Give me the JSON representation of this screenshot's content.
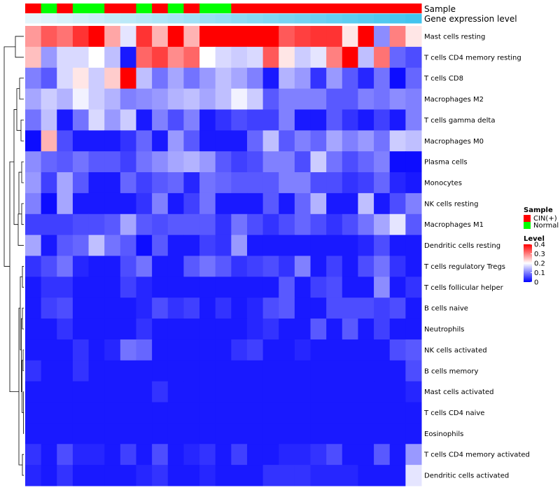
{
  "chart_data": {
    "type": "heatmap",
    "title": "",
    "annotations": {
      "sample": {
        "label": "Sample",
        "values": [
          "CIN(+)",
          "Normal",
          "CIN(+)",
          "Normal",
          "Normal",
          "CIN(+)",
          "CIN(+)",
          "Normal",
          "CIN(+)",
          "Normal",
          "CIN(+)",
          "Normal",
          "Normal",
          "CIN(+)",
          "CIN(+)",
          "CIN(+)",
          "CIN(+)",
          "CIN(+)",
          "CIN(+)",
          "CIN(+)",
          "CIN(+)",
          "CIN(+)",
          "CIN(+)",
          "CIN(+)",
          "CIN(+)"
        ]
      },
      "gene_expression": {
        "label": "Gene expression level",
        "values": [
          0.02,
          0.06,
          0.1,
          0.14,
          0.18,
          0.22,
          0.26,
          0.3,
          0.34,
          0.38,
          0.42,
          0.46,
          0.5,
          0.54,
          0.58,
          0.62,
          0.66,
          0.7,
          0.74,
          0.78,
          0.82,
          0.86,
          0.9,
          0.94,
          0.98
        ]
      }
    },
    "rows": [
      "Mast cells resting",
      "T cells CD4 memory resting",
      "T cells CD8",
      "Macrophages M2",
      "T cells gamma delta",
      "Macrophages M0",
      "Plasma cells",
      "Monocytes",
      "NK cells resting",
      "Macrophages M1",
      "Dendritic cells resting",
      "T cells regulatory  Tregs",
      "T cells follicular helper",
      "B cells naive",
      "Neutrophils",
      "NK cells activated",
      "B cells memory",
      "Mast cells activated",
      "T cells CD4 naive",
      "Eosinophils",
      "T cells CD4 memory activated",
      "Dendritic cells activated"
    ],
    "values": [
      [
        0.28,
        0.33,
        0.31,
        0.36,
        0.4,
        0.27,
        0.18,
        0.36,
        0.26,
        0.4,
        0.26,
        0.4,
        0.4,
        0.4,
        0.4,
        0.4,
        0.33,
        0.35,
        0.36,
        0.36,
        0.22,
        0.4,
        0.11,
        0.3,
        0.22
      ],
      [
        0.25,
        0.12,
        0.17,
        0.17,
        0.2,
        0.15,
        0.02,
        0.32,
        0.35,
        0.29,
        0.32,
        0.2,
        0.17,
        0.16,
        0.17,
        0.33,
        0.22,
        0.16,
        0.18,
        0.3,
        0.4,
        0.15,
        0.31,
        0.08,
        0.06
      ],
      [
        0.1,
        0.07,
        0.17,
        0.22,
        0.16,
        0.24,
        0.4,
        0.15,
        0.09,
        0.13,
        0.09,
        0.12,
        0.15,
        0.13,
        0.1,
        0.02,
        0.14,
        0.12,
        0.04,
        0.12,
        0.07,
        0.03,
        0.09,
        0.01,
        0.08
      ],
      [
        0.13,
        0.16,
        0.14,
        0.19,
        0.16,
        0.14,
        0.1,
        0.11,
        0.12,
        0.14,
        0.15,
        0.13,
        0.15,
        0.19,
        0.16,
        0.07,
        0.1,
        0.1,
        0.1,
        0.07,
        0.07,
        0.1,
        0.09,
        0.11,
        0.1
      ],
      [
        0.09,
        0.15,
        0.02,
        0.09,
        0.17,
        0.12,
        0.16,
        0.02,
        0.1,
        0.06,
        0.1,
        0.02,
        0.04,
        0.06,
        0.05,
        0.05,
        0.1,
        0.02,
        0.02,
        0.07,
        0.04,
        0.02,
        0.05,
        0.02,
        0.1
      ],
      [
        0.01,
        0.26,
        0.06,
        0.02,
        0.02,
        0.02,
        0.04,
        0.08,
        0.02,
        0.12,
        0.07,
        0.02,
        0.02,
        0.02,
        0.08,
        0.15,
        0.07,
        0.1,
        0.08,
        0.13,
        0.1,
        0.12,
        0.09,
        0.16,
        0.15
      ],
      [
        0.11,
        0.08,
        0.07,
        0.09,
        0.07,
        0.07,
        0.05,
        0.09,
        0.11,
        0.13,
        0.14,
        0.12,
        0.07,
        0.05,
        0.06,
        0.1,
        0.1,
        0.06,
        0.16,
        0.09,
        0.06,
        0.08,
        0.1,
        0.01,
        0.01
      ],
      [
        0.12,
        0.05,
        0.13,
        0.07,
        0.02,
        0.02,
        0.08,
        0.05,
        0.07,
        0.08,
        0.03,
        0.09,
        0.08,
        0.07,
        0.07,
        0.07,
        0.1,
        0.1,
        0.06,
        0.06,
        0.04,
        0.05,
        0.08,
        0.03,
        0.02
      ],
      [
        0.1,
        0.01,
        0.13,
        0.02,
        0.02,
        0.02,
        0.02,
        0.04,
        0.1,
        0.02,
        0.05,
        0.09,
        0.02,
        0.02,
        0.02,
        0.07,
        0.02,
        0.08,
        0.14,
        0.02,
        0.02,
        0.15,
        0.02,
        0.06,
        0.1
      ],
      [
        0.05,
        0.05,
        0.05,
        0.06,
        0.06,
        0.07,
        0.13,
        0.07,
        0.06,
        0.07,
        0.07,
        0.07,
        0.04,
        0.09,
        0.06,
        0.04,
        0.06,
        0.08,
        0.06,
        0.04,
        0.06,
        0.09,
        0.13,
        0.18,
        0.07
      ],
      [
        0.13,
        0.02,
        0.07,
        0.08,
        0.15,
        0.09,
        0.07,
        0.01,
        0.07,
        0.02,
        0.02,
        0.05,
        0.04,
        0.12,
        0.02,
        0.02,
        0.02,
        0.02,
        0.02,
        0.02,
        0.02,
        0.03,
        0.06,
        0.02,
        0.02
      ],
      [
        0.04,
        0.06,
        0.09,
        0.03,
        0.02,
        0.02,
        0.06,
        0.09,
        0.02,
        0.02,
        0.07,
        0.09,
        0.07,
        0.04,
        0.05,
        0.06,
        0.04,
        0.1,
        0.02,
        0.05,
        0.02,
        0.06,
        0.09,
        0.04,
        0.02
      ],
      [
        0.02,
        0.04,
        0.04,
        0.02,
        0.02,
        0.02,
        0.05,
        0.03,
        0.02,
        0.02,
        0.02,
        0.02,
        0.02,
        0.02,
        0.02,
        0.02,
        0.07,
        0.02,
        0.05,
        0.06,
        0.02,
        0.02,
        0.11,
        0.02,
        0.04
      ],
      [
        0.02,
        0.05,
        0.06,
        0.02,
        0.02,
        0.02,
        0.02,
        0.03,
        0.06,
        0.04,
        0.05,
        0.02,
        0.04,
        0.02,
        0.03,
        0.06,
        0.07,
        0.02,
        0.02,
        0.06,
        0.06,
        0.06,
        0.05,
        0.06,
        0.02
      ],
      [
        0.02,
        0.02,
        0.04,
        0.02,
        0.02,
        0.02,
        0.02,
        0.04,
        0.02,
        0.02,
        0.02,
        0.02,
        0.02,
        0.02,
        0.03,
        0.04,
        0.02,
        0.02,
        0.07,
        0.02,
        0.07,
        0.02,
        0.05,
        0.02,
        0.02
      ],
      [
        0.02,
        0.02,
        0.02,
        0.04,
        0.02,
        0.03,
        0.09,
        0.08,
        0.02,
        0.02,
        0.02,
        0.02,
        0.02,
        0.04,
        0.05,
        0.02,
        0.02,
        0.03,
        0.02,
        0.02,
        0.02,
        0.02,
        0.02,
        0.06,
        0.07
      ],
      [
        0.04,
        0.02,
        0.02,
        0.04,
        0.02,
        0.02,
        0.02,
        0.02,
        0.02,
        0.02,
        0.02,
        0.02,
        0.02,
        0.02,
        0.02,
        0.02,
        0.02,
        0.02,
        0.02,
        0.02,
        0.02,
        0.02,
        0.02,
        0.02,
        0.06
      ],
      [
        0.02,
        0.02,
        0.02,
        0.02,
        0.02,
        0.02,
        0.02,
        0.02,
        0.04,
        0.02,
        0.02,
        0.02,
        0.02,
        0.02,
        0.02,
        0.02,
        0.02,
        0.02,
        0.02,
        0.02,
        0.02,
        0.02,
        0.02,
        0.02,
        0.03
      ],
      [
        0.02,
        0.02,
        0.02,
        0.02,
        0.02,
        0.02,
        0.02,
        0.02,
        0.02,
        0.02,
        0.02,
        0.02,
        0.02,
        0.02,
        0.02,
        0.02,
        0.02,
        0.02,
        0.02,
        0.02,
        0.02,
        0.02,
        0.02,
        0.02,
        0.02
      ],
      [
        0.02,
        0.02,
        0.02,
        0.02,
        0.02,
        0.02,
        0.02,
        0.02,
        0.02,
        0.02,
        0.02,
        0.02,
        0.02,
        0.02,
        0.02,
        0.02,
        0.02,
        0.02,
        0.02,
        0.02,
        0.02,
        0.02,
        0.02,
        0.02,
        0.02
      ],
      [
        0.04,
        0.02,
        0.06,
        0.03,
        0.03,
        0.02,
        0.05,
        0.02,
        0.06,
        0.02,
        0.03,
        0.04,
        0.02,
        0.05,
        0.02,
        0.02,
        0.03,
        0.03,
        0.04,
        0.06,
        0.02,
        0.02,
        0.07,
        0.02,
        0.12
      ],
      [
        0.03,
        0.02,
        0.04,
        0.02,
        0.02,
        0.02,
        0.02,
        0.03,
        0.04,
        0.02,
        0.02,
        0.03,
        0.02,
        0.02,
        0.02,
        0.04,
        0.04,
        0.04,
        0.03,
        0.03,
        0.03,
        0.02,
        0.02,
        0.02,
        0.18
      ]
    ],
    "color_scale": {
      "min": 0,
      "mid": 0.2,
      "max": 0.4,
      "colors": [
        "#0000ff",
        "#ffffff",
        "#ff0000"
      ]
    },
    "legend": {
      "sample_title": "Sample",
      "sample_entries": [
        {
          "label": "CIN(+)",
          "color": "#ff0000"
        },
        {
          "label": "Normal",
          "color": "#00ff00"
        }
      ],
      "level_title": "Level",
      "level_ticks": [
        0.4,
        0.3,
        0.2,
        0.1,
        0
      ],
      "level_tick_labels": [
        "0.4",
        "0.3",
        "0.2",
        "0.1",
        "0"
      ]
    },
    "gene_expression_colors": [
      "#e8f6fb",
      "#3fc3ee"
    ],
    "grid": false,
    "legend_position": "right"
  }
}
